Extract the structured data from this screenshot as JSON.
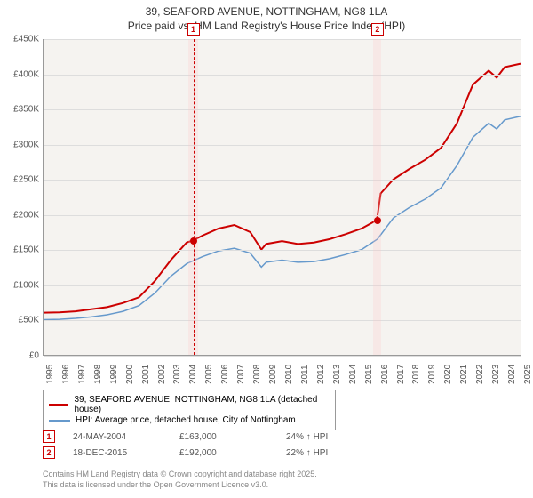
{
  "title_line1": "39, SEAFORD AVENUE, NOTTINGHAM, NG8 1LA",
  "title_line2": "Price paid vs. HM Land Registry's House Price Index (HPI)",
  "chart": {
    "type": "line",
    "background_color": "#f5f3f0",
    "grid_color": "#dddddd",
    "axis_color": "#999999",
    "font_size_axis": 10,
    "text_color": "#555555",
    "xlim": [
      1995,
      2025
    ],
    "ylim": [
      0,
      450000
    ],
    "ytick_step": 50000,
    "y_ticks": [
      {
        "v": 0,
        "label": "£0"
      },
      {
        "v": 50000,
        "label": "£50K"
      },
      {
        "v": 100000,
        "label": "£100K"
      },
      {
        "v": 150000,
        "label": "£150K"
      },
      {
        "v": 200000,
        "label": "£200K"
      },
      {
        "v": 250000,
        "label": "£250K"
      },
      {
        "v": 300000,
        "label": "£300K"
      },
      {
        "v": 350000,
        "label": "£350K"
      },
      {
        "v": 400000,
        "label": "£400K"
      },
      {
        "v": 450000,
        "label": "£450K"
      }
    ],
    "x_ticks": [
      1995,
      1996,
      1997,
      1998,
      1999,
      2000,
      2001,
      2002,
      2003,
      2004,
      2005,
      2006,
      2007,
      2008,
      2009,
      2010,
      2011,
      2012,
      2013,
      2014,
      2015,
      2016,
      2017,
      2018,
      2019,
      2020,
      2021,
      2022,
      2023,
      2024,
      2025
    ],
    "series": [
      {
        "name": "39, SEAFORD AVENUE, NOTTINGHAM, NG8 1LA (detached house)",
        "color": "#cc0000",
        "line_width": 2,
        "points": [
          [
            1995,
            60000
          ],
          [
            1996,
            60500
          ],
          [
            1997,
            62000
          ],
          [
            1998,
            65000
          ],
          [
            1999,
            68000
          ],
          [
            2000,
            74000
          ],
          [
            2001,
            82000
          ],
          [
            2002,
            105000
          ],
          [
            2003,
            135000
          ],
          [
            2004,
            160000
          ],
          [
            2004.4,
            163000
          ],
          [
            2005,
            170000
          ],
          [
            2006,
            180000
          ],
          [
            2007,
            185000
          ],
          [
            2008,
            175000
          ],
          [
            2008.7,
            150000
          ],
          [
            2009,
            158000
          ],
          [
            2010,
            162000
          ],
          [
            2011,
            158000
          ],
          [
            2012,
            160000
          ],
          [
            2013,
            165000
          ],
          [
            2014,
            172000
          ],
          [
            2015,
            180000
          ],
          [
            2015.96,
            192000
          ],
          [
            2016.2,
            230000
          ],
          [
            2017,
            250000
          ],
          [
            2018,
            265000
          ],
          [
            2019,
            278000
          ],
          [
            2020,
            295000
          ],
          [
            2021,
            330000
          ],
          [
            2022,
            385000
          ],
          [
            2023,
            405000
          ],
          [
            2023.5,
            395000
          ],
          [
            2024,
            410000
          ],
          [
            2025,
            415000
          ]
        ]
      },
      {
        "name": "HPI: Average price, detached house, City of Nottingham",
        "color": "#6699cc",
        "line_width": 1.5,
        "points": [
          [
            1995,
            50000
          ],
          [
            1996,
            50500
          ],
          [
            1997,
            52000
          ],
          [
            1998,
            54000
          ],
          [
            1999,
            57000
          ],
          [
            2000,
            62000
          ],
          [
            2001,
            70000
          ],
          [
            2002,
            88000
          ],
          [
            2003,
            112000
          ],
          [
            2004,
            130000
          ],
          [
            2005,
            140000
          ],
          [
            2006,
            148000
          ],
          [
            2007,
            152000
          ],
          [
            2008,
            145000
          ],
          [
            2008.7,
            125000
          ],
          [
            2009,
            132000
          ],
          [
            2010,
            135000
          ],
          [
            2011,
            132000
          ],
          [
            2012,
            133000
          ],
          [
            2013,
            137000
          ],
          [
            2014,
            143000
          ],
          [
            2015,
            150000
          ],
          [
            2016,
            165000
          ],
          [
            2017,
            195000
          ],
          [
            2018,
            210000
          ],
          [
            2019,
            222000
          ],
          [
            2020,
            238000
          ],
          [
            2021,
            270000
          ],
          [
            2022,
            310000
          ],
          [
            2023,
            330000
          ],
          [
            2023.5,
            322000
          ],
          [
            2024,
            335000
          ],
          [
            2025,
            340000
          ]
        ]
      }
    ],
    "sale_markers": [
      {
        "n": "1",
        "x": 2004.4,
        "y": 163000,
        "band_start": 2004.1,
        "band_end": 2004.7
      },
      {
        "n": "2",
        "x": 2015.96,
        "y": 192000,
        "band_start": 2015.7,
        "band_end": 2016.2
      }
    ]
  },
  "legend": {
    "items": [
      {
        "color": "#cc0000",
        "label": "39, SEAFORD AVENUE, NOTTINGHAM, NG8 1LA (detached house)"
      },
      {
        "color": "#6699cc",
        "label": "HPI: Average price, detached house, City of Nottingham"
      }
    ]
  },
  "sales_table": {
    "rows": [
      {
        "n": "1",
        "date": "24-MAY-2004",
        "price": "£163,000",
        "delta": "24% ↑ HPI"
      },
      {
        "n": "2",
        "date": "18-DEC-2015",
        "price": "£192,000",
        "delta": "22% ↑ HPI"
      }
    ]
  },
  "footer_line1": "Contains HM Land Registry data © Crown copyright and database right 2025.",
  "footer_line2": "This data is licensed under the Open Government Licence v3.0."
}
